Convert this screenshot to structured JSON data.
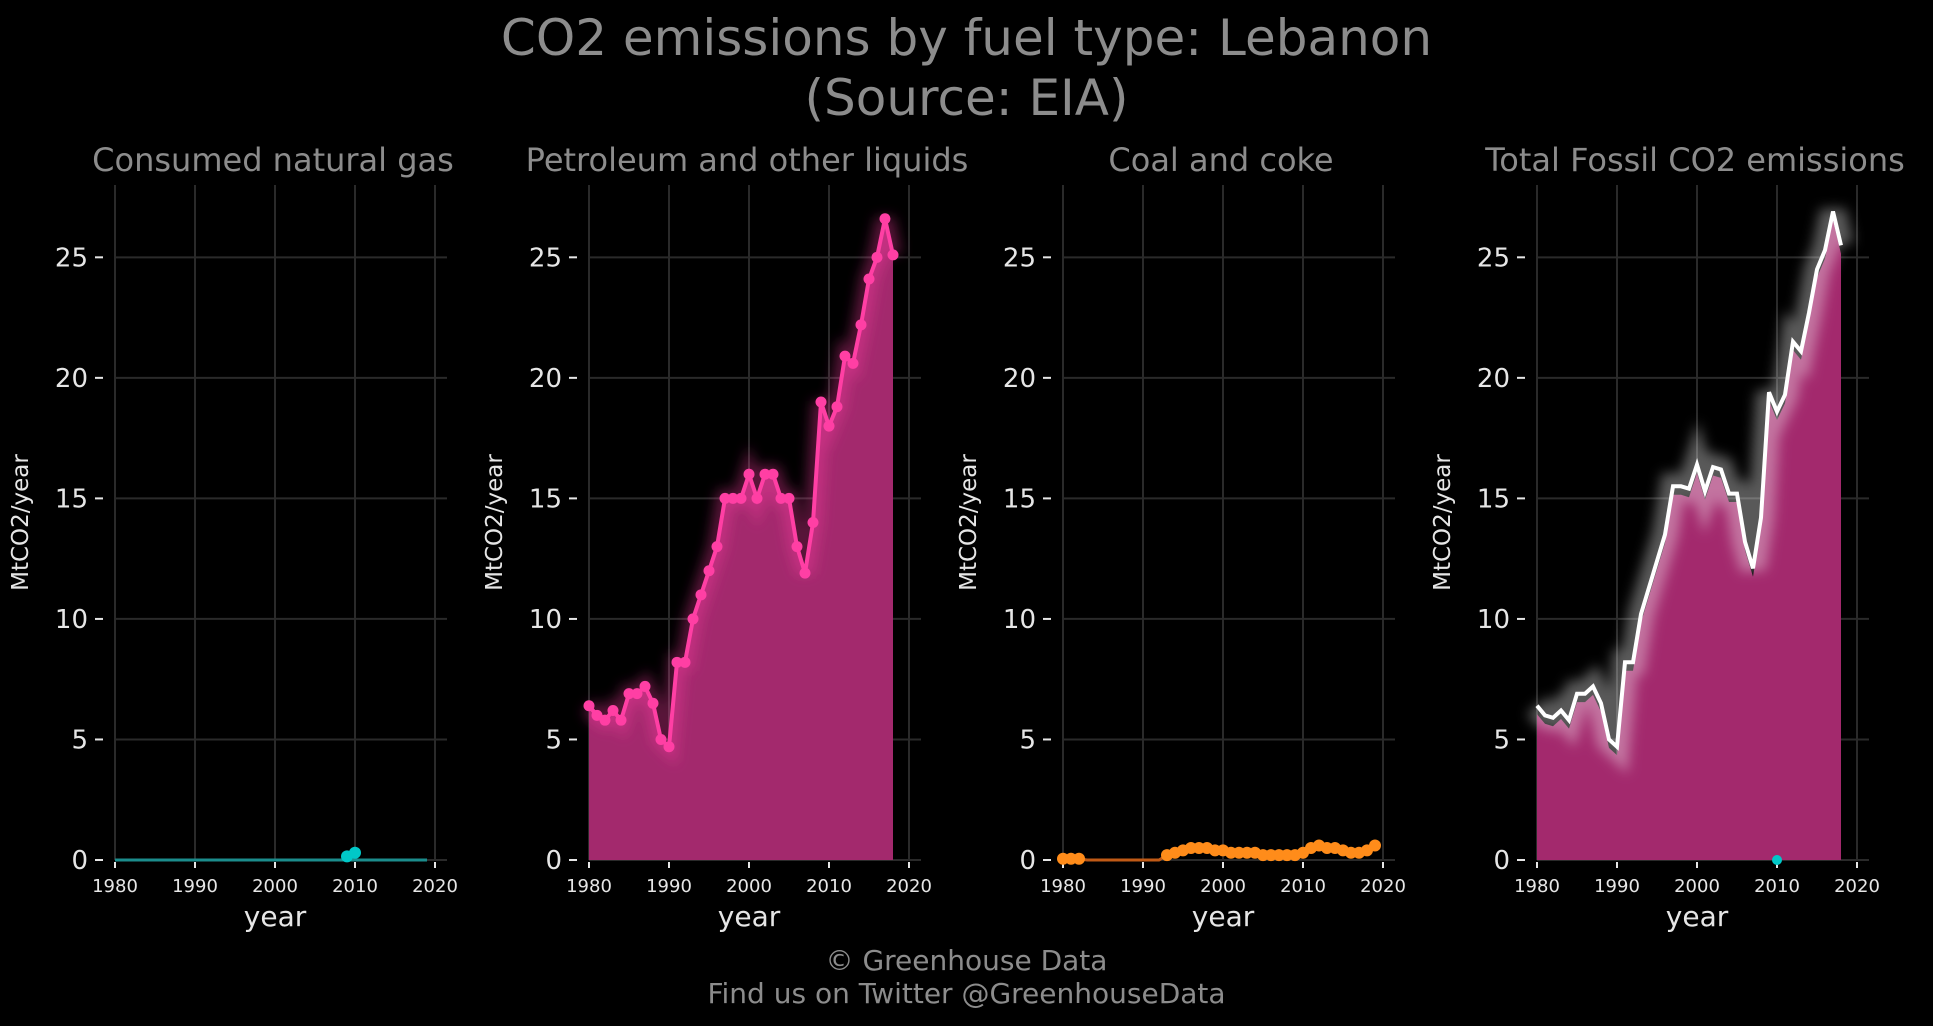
{
  "title": {
    "line1": "CO2 emissions by fuel type: Lebanon",
    "line2": "(Source: EIA)"
  },
  "footer": {
    "line1": "© Greenhouse Data",
    "line2": "Find us on Twitter @GreenhouseData"
  },
  "colors": {
    "background": "#000000",
    "grid": "#2a2a2a",
    "gas": "#00c8c8",
    "petroleum": "#ff3fa4",
    "petroleum_fill": "#a3296d",
    "coal": "#ff8c1a",
    "total_line": "#ffffff"
  },
  "chart_data": [
    {
      "type": "line",
      "title": "Consumed natural gas",
      "xlabel": "year",
      "ylabel": "MtCO2/year",
      "xlim": [
        1980,
        2020
      ],
      "ylim": [
        0,
        28
      ],
      "x_ticks": [
        1980,
        1990,
        2000,
        2010,
        2020
      ],
      "y_ticks": [
        0,
        5,
        10,
        15,
        20,
        25
      ],
      "grid": true,
      "series": [
        {
          "color": "#00c8c8",
          "line": [
            [
              1980,
              0
            ],
            [
              2019,
              0
            ]
          ],
          "points": [
            [
              2009,
              0.15
            ],
            [
              2010,
              0.3
            ]
          ]
        }
      ]
    },
    {
      "type": "area",
      "title": "Petroleum and other liquids",
      "xlabel": "year",
      "ylabel": "MtCO2/year",
      "xlim": [
        1980,
        2019
      ],
      "ylim": [
        0,
        28
      ],
      "x_ticks": [
        1980,
        1990,
        2000,
        2010,
        2020
      ],
      "y_ticks": [
        0,
        5,
        10,
        15,
        20,
        25
      ],
      "grid": true,
      "series": [
        {
          "color": "#ff3fa4",
          "x": [
            1980,
            1981,
            1982,
            1983,
            1984,
            1985,
            1986,
            1987,
            1988,
            1989,
            1990,
            1991,
            1992,
            1993,
            1994,
            1995,
            1996,
            1997,
            1998,
            1999,
            2000,
            2001,
            2002,
            2003,
            2004,
            2005,
            2006,
            2007,
            2008,
            2009,
            2010,
            2011,
            2012,
            2013,
            2014,
            2015,
            2016,
            2017,
            2018
          ],
          "values": [
            6.4,
            6.0,
            5.8,
            6.2,
            5.8,
            6.9,
            6.9,
            7.2,
            6.5,
            5.0,
            4.7,
            8.2,
            8.2,
            10.0,
            11.0,
            12.0,
            13.0,
            15.0,
            15.0,
            15.0,
            16.0,
            15.0,
            16.0,
            16.0,
            15.0,
            15.0,
            13.0,
            11.9,
            14.0,
            19.0,
            18.0,
            18.8,
            20.9,
            20.6,
            22.2,
            24.1,
            25.0,
            26.6,
            25.1
          ]
        }
      ]
    },
    {
      "type": "line",
      "title": "Coal and coke",
      "xlabel": "year",
      "ylabel": "MtCO2/year",
      "xlim": [
        1980,
        2019
      ],
      "ylim": [
        0,
        28
      ],
      "x_ticks": [
        1980,
        1990,
        2000,
        2010,
        2020
      ],
      "y_ticks": [
        0,
        5,
        10,
        15,
        20,
        25
      ],
      "grid": true,
      "series": [
        {
          "color": "#ff8c1a",
          "x": [
            1980,
            1981,
            1982,
            1983,
            1984,
            1985,
            1986,
            1987,
            1988,
            1989,
            1990,
            1991,
            1992,
            1993,
            1994,
            1995,
            1996,
            1997,
            1998,
            1999,
            2000,
            2001,
            2002,
            2003,
            2004,
            2005,
            2006,
            2007,
            2008,
            2009,
            2010,
            2011,
            2012,
            2013,
            2014,
            2015,
            2016,
            2017,
            2018,
            2019
          ],
          "values": [
            0.05,
            0.05,
            0.05,
            0,
            0,
            0,
            0,
            0,
            0,
            0,
            0,
            0,
            0,
            0.2,
            0.3,
            0.4,
            0.5,
            0.5,
            0.5,
            0.4,
            0.4,
            0.3,
            0.3,
            0.3,
            0.3,
            0.2,
            0.2,
            0.2,
            0.2,
            0.2,
            0.3,
            0.5,
            0.6,
            0.5,
            0.5,
            0.4,
            0.3,
            0.3,
            0.4,
            0.6
          ],
          "markers": [
            1980,
            1981,
            1982,
            1993,
            1994,
            1995,
            1996,
            1997,
            1998,
            1999,
            2000,
            2001,
            2002,
            2003,
            2004,
            2005,
            2006,
            2007,
            2008,
            2009,
            2010,
            2011,
            2012,
            2013,
            2014,
            2015,
            2016,
            2017,
            2018,
            2019
          ]
        }
      ]
    },
    {
      "type": "area",
      "title": "Total Fossil CO2 emissions",
      "xlabel": "year",
      "ylabel": "MtCO2/year",
      "xlim": [
        1980,
        2019
      ],
      "ylim": [
        0,
        28
      ],
      "x_ticks": [
        1980,
        1990,
        2000,
        2010,
        2020
      ],
      "y_ticks": [
        0,
        5,
        10,
        15,
        20,
        25
      ],
      "grid": true,
      "series": [
        {
          "color": "#ffffff",
          "x": [
            1980,
            1981,
            1982,
            1983,
            1984,
            1985,
            1986,
            1987,
            1988,
            1989,
            1990,
            1991,
            1992,
            1993,
            1994,
            1995,
            1996,
            1997,
            1998,
            1999,
            2000,
            2001,
            2002,
            2003,
            2004,
            2005,
            2006,
            2007,
            2008,
            2009,
            2010,
            2011,
            2012,
            2013,
            2014,
            2015,
            2016,
            2017,
            2018
          ],
          "values": [
            6.4,
            6.0,
            5.9,
            6.2,
            5.8,
            6.9,
            6.9,
            7.2,
            6.5,
            5.0,
            4.7,
            8.2,
            8.2,
            10.2,
            11.3,
            12.4,
            13.5,
            15.5,
            15.5,
            15.4,
            16.4,
            15.3,
            16.3,
            16.2,
            15.2,
            15.2,
            13.2,
            12.1,
            14.2,
            19.4,
            18.6,
            19.3,
            21.5,
            21.1,
            22.7,
            24.5,
            25.3,
            26.9,
            25.5
          ]
        }
      ]
    }
  ]
}
